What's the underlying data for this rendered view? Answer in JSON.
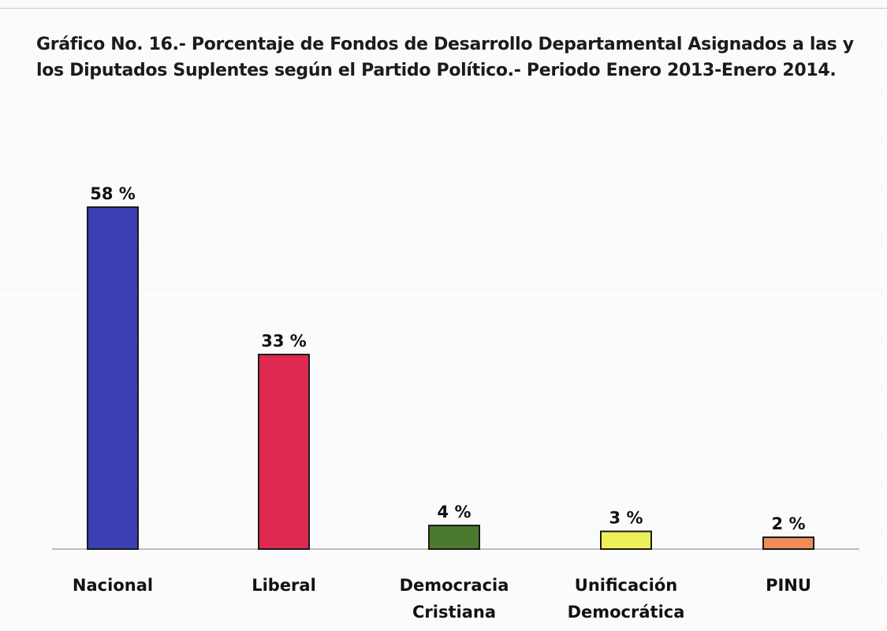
{
  "title": {
    "line1": "Gráfico No. 16.- Porcentaje de Fondos de Desarrollo Departamental Asignados a las y",
    "line2": "los Diputados Suplentes según el Partido Político.- Periodo Enero 2013-Enero 2014."
  },
  "chart_data": {
    "type": "bar",
    "categories": [
      [
        "Nacional"
      ],
      [
        "Liberal"
      ],
      [
        "Democracia",
        "Cristiana"
      ],
      [
        "Unificación",
        "Democrática"
      ],
      [
        "PINU"
      ]
    ],
    "values": [
      58,
      33,
      4,
      3,
      2
    ],
    "value_labels": [
      "58 %",
      "33 %",
      "4 %",
      "3 %",
      "2 %"
    ],
    "colors": [
      "#3a3fb4",
      "#e0294f",
      "#4b7a2e",
      "#eef05a",
      "#ef8c5a"
    ],
    "ylim": [
      0,
      60
    ],
    "grid": false,
    "legend": "none"
  }
}
